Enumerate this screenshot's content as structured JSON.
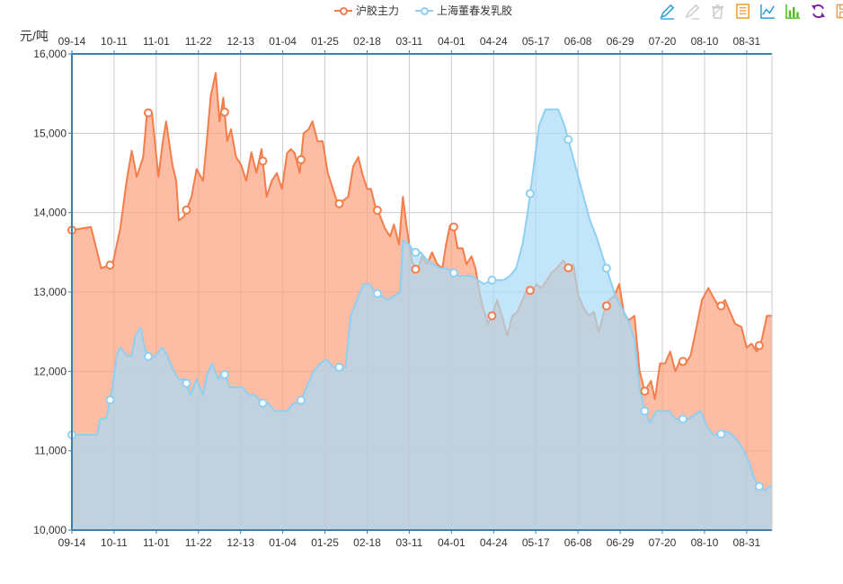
{
  "legend": [
    {
      "name": "沪胶主力",
      "color": "#f47d4a"
    },
    {
      "name": "上海董春发乳胶",
      "color": "#8fd0f2"
    }
  ],
  "toolbox": [
    {
      "icon": "mark-pen-icon",
      "color": "#2a9fd6"
    },
    {
      "icon": "mark-undo-icon",
      "color": "#cccccc"
    },
    {
      "icon": "mark-clear-icon",
      "color": "#cccccc"
    },
    {
      "icon": "data-view-icon",
      "color": "#f0a030"
    },
    {
      "icon": "line-chart-icon",
      "color": "#2a9fd6"
    },
    {
      "icon": "bar-chart-icon",
      "color": "#4cbb17"
    },
    {
      "icon": "restore-icon",
      "color": "#7a1fa2"
    },
    {
      "icon": "save-image-icon",
      "color": "#e0a060"
    }
  ],
  "chart_data": {
    "type": "area",
    "ylabel": "元/吨",
    "ylim": [
      10000,
      16000
    ],
    "yticks": [
      10000,
      11000,
      12000,
      13000,
      14000,
      15000,
      16000
    ],
    "ytick_labels": [
      "10,000",
      "11,000",
      "12,000",
      "13,000",
      "14,000",
      "15,000",
      "16,000"
    ],
    "xticks": [
      "09-14",
      "10-11",
      "11-01",
      "11-22",
      "12-13",
      "01-04",
      "01-25",
      "02-18",
      "03-11",
      "04-01",
      "04-24",
      "05-17",
      "06-08",
      "06-29",
      "07-20",
      "08-10",
      "08-31"
    ],
    "grid": true,
    "series": [
      {
        "name": "沪胶主力",
        "color": "#f47d4a",
        "fill": "rgba(252,160,125,0.70)",
        "points": [
          [
            0,
            13780
          ],
          [
            1.5,
            13820
          ],
          [
            2.3,
            13300
          ],
          [
            3.2,
            13350
          ],
          [
            3.8,
            13800
          ],
          [
            4.3,
            14400
          ],
          [
            4.7,
            14780
          ],
          [
            5.1,
            14450
          ],
          [
            5.6,
            14700
          ],
          [
            5.9,
            15260
          ],
          [
            6.3,
            15250
          ],
          [
            6.8,
            14450
          ],
          [
            7.1,
            14850
          ],
          [
            7.4,
            15150
          ],
          [
            7.9,
            14600
          ],
          [
            8.2,
            14400
          ],
          [
            8.4,
            13900
          ],
          [
            8.8,
            13950
          ],
          [
            9.4,
            14200
          ],
          [
            9.8,
            14550
          ],
          [
            10.3,
            14400
          ],
          [
            10.6,
            14900
          ],
          [
            10.9,
            15460
          ],
          [
            11.3,
            15760
          ],
          [
            11.6,
            15150
          ],
          [
            11.9,
            15450
          ],
          [
            12.2,
            14900
          ],
          [
            12.5,
            15050
          ],
          [
            12.9,
            14700
          ],
          [
            13.3,
            14600
          ],
          [
            13.7,
            14400
          ],
          [
            14.1,
            14760
          ],
          [
            14.5,
            14500
          ],
          [
            14.9,
            14800
          ],
          [
            15.3,
            14200
          ],
          [
            15.7,
            14400
          ],
          [
            16.1,
            14500
          ],
          [
            16.5,
            14300
          ],
          [
            16.9,
            14750
          ],
          [
            17.2,
            14800
          ],
          [
            17.5,
            14750
          ],
          [
            17.9,
            14500
          ],
          [
            18.2,
            15000
          ],
          [
            18.6,
            15050
          ],
          [
            18.9,
            15150
          ],
          [
            19.3,
            14900
          ],
          [
            19.7,
            14900
          ],
          [
            20.1,
            14500
          ],
          [
            20.5,
            14300
          ],
          [
            20.9,
            14100
          ],
          [
            21.3,
            14150
          ],
          [
            21.7,
            14200
          ],
          [
            22.1,
            14580
          ],
          [
            22.5,
            14700
          ],
          [
            22.8,
            14500
          ],
          [
            23.2,
            14300
          ],
          [
            23.5,
            14300
          ],
          [
            23.8,
            14100
          ],
          [
            24.2,
            13960
          ],
          [
            24.6,
            13800
          ],
          [
            25.0,
            13700
          ],
          [
            25.3,
            13850
          ],
          [
            25.7,
            13600
          ],
          [
            26.0,
            14200
          ],
          [
            26.3,
            13820
          ],
          [
            26.7,
            13400
          ],
          [
            27.1,
            13250
          ],
          [
            27.5,
            13450
          ],
          [
            27.9,
            13350
          ],
          [
            28.3,
            13500
          ],
          [
            28.7,
            13350
          ],
          [
            29.1,
            13300
          ],
          [
            29.4,
            13600
          ],
          [
            29.7,
            13840
          ],
          [
            30.0,
            13820
          ],
          [
            30.3,
            13550
          ],
          [
            30.7,
            13550
          ],
          [
            31.0,
            13350
          ],
          [
            31.4,
            13450
          ],
          [
            31.7,
            13300
          ],
          [
            32.0,
            13020
          ],
          [
            32.3,
            12800
          ],
          [
            32.7,
            12600
          ],
          [
            33.0,
            12700
          ],
          [
            33.4,
            12900
          ],
          [
            33.8,
            12700
          ],
          [
            34.2,
            12450
          ],
          [
            34.6,
            12700
          ],
          [
            35.0,
            12750
          ],
          [
            35.4,
            12900
          ],
          [
            35.8,
            13060
          ],
          [
            36.1,
            13000
          ],
          [
            36.5,
            13100
          ],
          [
            36.9,
            13050
          ],
          [
            37.3,
            13150
          ],
          [
            37.7,
            13250
          ],
          [
            38.1,
            13300
          ],
          [
            38.6,
            13400
          ],
          [
            39.1,
            13280
          ],
          [
            39.4,
            13350
          ],
          [
            39.8,
            12950
          ],
          [
            40.2,
            12800
          ],
          [
            40.6,
            12700
          ],
          [
            41.0,
            12750
          ],
          [
            41.4,
            12500
          ],
          [
            41.8,
            12750
          ],
          [
            42.2,
            12900
          ],
          [
            42.6,
            12950
          ],
          [
            43.0,
            13100
          ],
          [
            43.4,
            12700
          ],
          [
            43.8,
            12650
          ],
          [
            44.2,
            12700
          ],
          [
            44.6,
            12000
          ],
          [
            45.0,
            11750
          ],
          [
            45.5,
            11880
          ],
          [
            45.8,
            11650
          ],
          [
            46.2,
            12100
          ],
          [
            46.6,
            12100
          ],
          [
            47.0,
            12250
          ],
          [
            47.4,
            12000
          ],
          [
            47.8,
            12150
          ],
          [
            48.2,
            12100
          ],
          [
            48.6,
            12200
          ],
          [
            49.0,
            12500
          ],
          [
            49.5,
            12900
          ],
          [
            50.0,
            13050
          ],
          [
            50.5,
            12900
          ],
          [
            50.9,
            12800
          ],
          [
            51.3,
            12900
          ],
          [
            51.7,
            12750
          ],
          [
            52.1,
            12600
          ],
          [
            52.6,
            12560
          ],
          [
            53.0,
            12300
          ],
          [
            53.4,
            12350
          ],
          [
            53.8,
            12250
          ],
          [
            54.2,
            12400
          ],
          [
            54.6,
            12700
          ],
          [
            55.0,
            12700
          ]
        ],
        "markers": [
          0,
          3,
          6,
          9,
          12,
          15,
          18,
          21,
          24,
          27,
          30,
          33,
          36,
          39,
          42,
          45,
          48,
          51,
          54
        ]
      },
      {
        "name": "上海董春发乳胶",
        "color": "#8fd0f2",
        "fill": "rgba(168,218,246,0.70)",
        "points": [
          [
            0,
            11200
          ],
          [
            1,
            11200
          ],
          [
            2,
            11200
          ],
          [
            2.2,
            11400
          ],
          [
            2.7,
            11400
          ],
          [
            3.2,
            11800
          ],
          [
            3.5,
            12200
          ],
          [
            3.8,
            12300
          ],
          [
            4.3,
            12200
          ],
          [
            4.7,
            12200
          ],
          [
            5.0,
            12450
          ],
          [
            5.4,
            12550
          ],
          [
            5.7,
            12300
          ],
          [
            6.1,
            12150
          ],
          [
            6.6,
            12200
          ],
          [
            7.1,
            12300
          ],
          [
            7.5,
            12200
          ],
          [
            8.0,
            12000
          ],
          [
            8.4,
            11900
          ],
          [
            8.9,
            11900
          ],
          [
            9.3,
            11700
          ],
          [
            9.8,
            11900
          ],
          [
            10.3,
            11700
          ],
          [
            10.6,
            11950
          ],
          [
            11.0,
            12100
          ],
          [
            11.5,
            11900
          ],
          [
            11.9,
            12000
          ],
          [
            12.4,
            11800
          ],
          [
            12.9,
            11800
          ],
          [
            13.4,
            11800
          ],
          [
            13.9,
            11700
          ],
          [
            14.4,
            11700
          ],
          [
            14.9,
            11600
          ],
          [
            15.4,
            11600
          ],
          [
            15.9,
            11500
          ],
          [
            16.4,
            11500
          ],
          [
            16.9,
            11500
          ],
          [
            17.4,
            11600
          ],
          [
            17.9,
            11600
          ],
          [
            18.3,
            11750
          ],
          [
            18.7,
            11900
          ],
          [
            19.0,
            12000
          ],
          [
            19.5,
            12100
          ],
          [
            20.0,
            12150
          ],
          [
            20.5,
            12050
          ],
          [
            21.0,
            12050
          ],
          [
            21.5,
            12050
          ],
          [
            21.9,
            12700
          ],
          [
            22.4,
            12900
          ],
          [
            22.9,
            13100
          ],
          [
            23.4,
            13100
          ],
          [
            23.8,
            13000
          ],
          [
            24.3,
            12950
          ],
          [
            24.8,
            12900
          ],
          [
            25.3,
            12950
          ],
          [
            25.8,
            13000
          ],
          [
            26.0,
            13650
          ],
          [
            26.5,
            13600
          ],
          [
            26.9,
            13500
          ],
          [
            27.4,
            13500
          ],
          [
            27.9,
            13400
          ],
          [
            28.4,
            13350
          ],
          [
            28.9,
            13300
          ],
          [
            29.4,
            13300
          ],
          [
            29.9,
            13250
          ],
          [
            30.4,
            13200
          ],
          [
            30.9,
            13200
          ],
          [
            31.4,
            13200
          ],
          [
            31.9,
            13150
          ],
          [
            32.4,
            13100
          ],
          [
            32.9,
            13150
          ],
          [
            33.4,
            13150
          ],
          [
            33.9,
            13150
          ],
          [
            34.4,
            13200
          ],
          [
            34.9,
            13300
          ],
          [
            35.4,
            13600
          ],
          [
            35.8,
            14000
          ],
          [
            36.3,
            14600
          ],
          [
            36.7,
            15100
          ],
          [
            37.2,
            15300
          ],
          [
            37.7,
            15300
          ],
          [
            38.2,
            15300
          ],
          [
            38.7,
            15100
          ],
          [
            39.2,
            14800
          ],
          [
            39.7,
            14500
          ],
          [
            40.2,
            14200
          ],
          [
            40.7,
            13900
          ],
          [
            41.2,
            13700
          ],
          [
            41.7,
            13450
          ],
          [
            42.2,
            13200
          ],
          [
            42.7,
            12950
          ],
          [
            43.2,
            12800
          ],
          [
            43.7,
            12650
          ],
          [
            44.2,
            12400
          ],
          [
            44.6,
            11800
          ],
          [
            45.0,
            11500
          ],
          [
            45.4,
            11350
          ],
          [
            45.9,
            11500
          ],
          [
            46.4,
            11500
          ],
          [
            46.9,
            11500
          ],
          [
            47.4,
            11400
          ],
          [
            47.9,
            11400
          ],
          [
            48.4,
            11400
          ],
          [
            48.9,
            11450
          ],
          [
            49.4,
            11500
          ],
          [
            49.9,
            11300
          ],
          [
            50.4,
            11200
          ],
          [
            50.9,
            11200
          ],
          [
            51.4,
            11250
          ],
          [
            51.9,
            11200
          ],
          [
            52.4,
            11100
          ],
          [
            52.8,
            11000
          ],
          [
            53.2,
            10850
          ],
          [
            53.6,
            10650
          ],
          [
            54.0,
            10550
          ],
          [
            54.4,
            10500
          ],
          [
            54.8,
            10550
          ],
          [
            55.0,
            10550
          ]
        ],
        "markers": [
          0,
          3,
          6,
          9,
          12,
          15,
          18,
          21,
          24,
          27,
          30,
          33,
          36,
          39,
          42,
          45,
          48,
          51,
          54
        ]
      }
    ]
  }
}
